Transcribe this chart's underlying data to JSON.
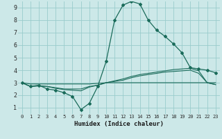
{
  "xlabel": "Humidex (Indice chaleur)",
  "background_color": "#cce8e8",
  "grid_color": "#99cccc",
  "line_color": "#1a6b5a",
  "xlim": [
    -0.5,
    23.5
  ],
  "ylim": [
    0.5,
    9.5
  ],
  "xticks": [
    0,
    1,
    2,
    3,
    4,
    5,
    6,
    7,
    8,
    9,
    10,
    11,
    12,
    13,
    14,
    15,
    16,
    17,
    18,
    19,
    20,
    21,
    22,
    23
  ],
  "yticks": [
    1,
    2,
    3,
    4,
    5,
    6,
    7,
    8,
    9
  ],
  "series": {
    "main": {
      "x": [
        0,
        1,
        2,
        3,
        4,
        5,
        6,
        7,
        8,
        9,
        10,
        11,
        12,
        13,
        14,
        15,
        16,
        17,
        18,
        19,
        20,
        21,
        22,
        23
      ],
      "y": [
        3.0,
        2.7,
        2.8,
        2.5,
        2.4,
        2.2,
        1.9,
        0.85,
        1.35,
        2.7,
        4.7,
        8.0,
        9.2,
        9.5,
        9.3,
        8.0,
        7.2,
        6.7,
        6.1,
        5.4,
        4.2,
        4.1,
        4.0,
        3.8
      ]
    },
    "line2": {
      "x": [
        0,
        1,
        2,
        3,
        4,
        5,
        6,
        7,
        8,
        9,
        10,
        11,
        12,
        13,
        14,
        15,
        16,
        17,
        18,
        19,
        20,
        21,
        22,
        23
      ],
      "y": [
        3.0,
        2.7,
        2.75,
        2.7,
        2.55,
        2.45,
        2.4,
        2.35,
        2.65,
        2.8,
        3.0,
        3.15,
        3.3,
        3.5,
        3.65,
        3.75,
        3.85,
        3.95,
        4.05,
        4.1,
        4.15,
        3.95,
        3.0,
        2.85
      ]
    },
    "line3": {
      "x": [
        0,
        1,
        2,
        3,
        4,
        5,
        6,
        7,
        8,
        9,
        10,
        11,
        12,
        13,
        14,
        15,
        16,
        17,
        18,
        19,
        20,
        21,
        22,
        23
      ],
      "y": [
        3.0,
        2.7,
        2.75,
        2.7,
        2.6,
        2.5,
        2.5,
        2.5,
        2.7,
        2.8,
        3.0,
        3.1,
        3.2,
        3.4,
        3.55,
        3.65,
        3.75,
        3.85,
        3.9,
        3.95,
        4.0,
        3.75,
        3.0,
        2.85
      ]
    },
    "line4": {
      "x": [
        0,
        1,
        2,
        3,
        4,
        5,
        6,
        7,
        8,
        9,
        10,
        11,
        12,
        13,
        14,
        15,
        16,
        17,
        18,
        19,
        20,
        21,
        22,
        23
      ],
      "y": [
        3.0,
        2.9,
        2.9,
        2.9,
        2.9,
        2.9,
        2.9,
        2.9,
        2.9,
        2.95,
        3.0,
        3.0,
        3.0,
        3.0,
        3.0,
        3.0,
        3.0,
        3.0,
        3.0,
        3.0,
        3.0,
        3.0,
        3.0,
        3.0
      ]
    }
  }
}
